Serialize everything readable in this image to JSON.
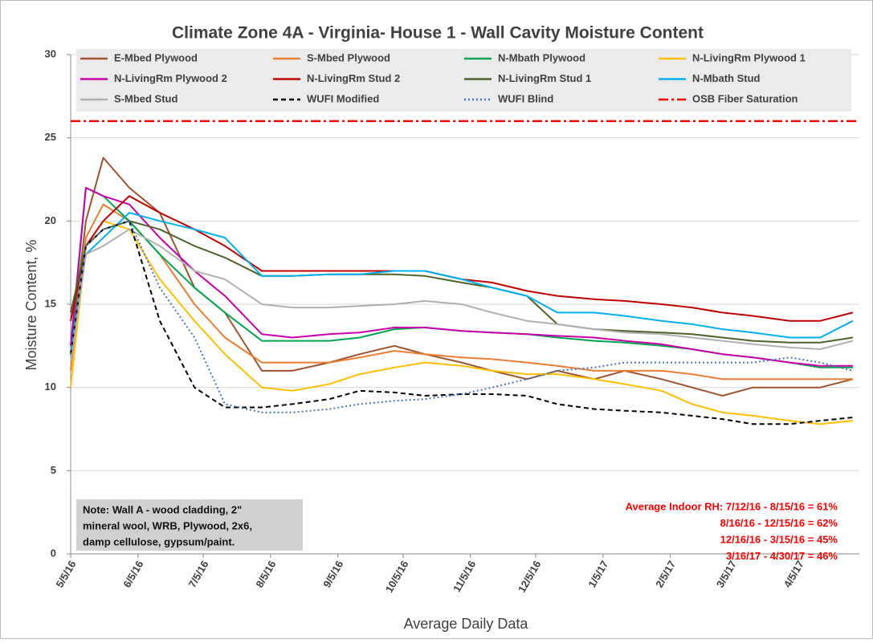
{
  "chart_data": {
    "type": "line",
    "title": "Climate Zone 4A - Virginia- House 1 - Wall Cavity Moisture Content",
    "y_label": "Moisture Content, %",
    "x_label": "Average Daily Data",
    "x": [
      "2016-05-05",
      "2016-05-12",
      "2016-05-20",
      "2016-06-01",
      "2016-06-15",
      "2016-07-01",
      "2016-07-15",
      "2016-08-01",
      "2016-08-15",
      "2016-09-01",
      "2016-09-15",
      "2016-10-01",
      "2016-10-15",
      "2016-11-01",
      "2016-11-15",
      "2016-12-01",
      "2016-12-15",
      "2017-01-01",
      "2017-01-15",
      "2017-02-01",
      "2017-02-15",
      "2017-03-01",
      "2017-03-15",
      "2017-04-01",
      "2017-04-15",
      "2017-04-30"
    ],
    "xlim": [
      "2016-05-05",
      "2017-05-03"
    ],
    "xticks": [
      {
        "value": "2016-05-05",
        "label": "5/5/16"
      },
      {
        "value": "2016-06-05",
        "label": "6/5/16"
      },
      {
        "value": "2016-07-05",
        "label": "7/5/16"
      },
      {
        "value": "2016-08-05",
        "label": "8/5/16"
      },
      {
        "value": "2016-09-05",
        "label": "9/5/16"
      },
      {
        "value": "2016-10-05",
        "label": "10/5/16"
      },
      {
        "value": "2016-11-05",
        "label": "11/5/16"
      },
      {
        "value": "2016-12-05",
        "label": "12/5/16"
      },
      {
        "value": "2017-01-05",
        "label": "1/5/17"
      },
      {
        "value": "2017-02-05",
        "label": "2/5/17"
      },
      {
        "value": "2017-03-05",
        "label": "3/5/17"
      },
      {
        "value": "2017-04-05",
        "label": "4/5/17"
      }
    ],
    "ylim": [
      0,
      30
    ],
    "yticks": [
      0,
      5,
      10,
      15,
      20,
      25,
      30
    ],
    "grid": true,
    "series": [
      {
        "name": "E-Mbed Plywood",
        "color": "#a0522d",
        "style": "solid",
        "values": [
          12,
          20,
          23.8,
          22,
          20.5,
          16,
          14.5,
          11,
          11,
          11.5,
          12,
          12.5,
          12,
          11.5,
          11,
          10.5,
          11,
          10.5,
          11,
          10.5,
          10,
          9.5,
          10,
          10,
          10,
          10.5
        ]
      },
      {
        "name": "S-Mbed Plywood",
        "color": "#ed7d31",
        "style": "solid",
        "values": [
          11,
          19,
          21,
          20,
          18,
          15,
          13,
          11.5,
          11.5,
          11.5,
          11.8,
          12.2,
          12,
          11.8,
          11.7,
          11.5,
          11.3,
          11,
          11,
          11,
          10.8,
          10.5,
          10.5,
          10.5,
          10.5,
          10.5
        ]
      },
      {
        "name": "N-Mbath Plywood",
        "color": "#00a550",
        "style": "solid",
        "values": [
          12,
          22,
          21.5,
          20,
          18,
          16,
          14.5,
          12.8,
          12.8,
          12.8,
          13,
          13.5,
          13.6,
          13.4,
          13.3,
          13.2,
          13,
          12.8,
          12.7,
          12.5,
          12.3,
          12,
          11.8,
          11.5,
          11.2,
          11.2
        ]
      },
      {
        "name": "N-LivingRm Plywood 1",
        "color": "#ffc000",
        "style": "solid",
        "values": [
          10,
          18.5,
          20,
          19.5,
          16.5,
          14,
          12,
          10,
          9.8,
          10.2,
          10.8,
          11.2,
          11.5,
          11.3,
          11,
          10.8,
          10.8,
          10.5,
          10.2,
          9.8,
          9,
          8.5,
          8.3,
          8,
          7.8,
          8
        ]
      },
      {
        "name": "N-LivingRm Plywood 2",
        "color": "#cc00aa",
        "style": "solid",
        "values": [
          12.5,
          22,
          21.5,
          21,
          19,
          17,
          15.5,
          13.2,
          13,
          13.2,
          13.3,
          13.6,
          13.6,
          13.4,
          13.3,
          13.2,
          13.1,
          13,
          12.8,
          12.6,
          12.3,
          12,
          11.8,
          11.5,
          11.3,
          11.3
        ]
      },
      {
        "name": "N-LivingRm Stud 2",
        "color": "#c00000",
        "style": "solid",
        "values": [
          14,
          18.5,
          20,
          21.5,
          20.5,
          19.5,
          18.5,
          17,
          17,
          17,
          17,
          17,
          17,
          16.5,
          16.3,
          15.8,
          15.5,
          15.3,
          15.2,
          15,
          14.8,
          14.5,
          14.3,
          14,
          14,
          14.5
        ]
      },
      {
        "name": "N-LivingRm Stud 1",
        "color": "#4f6228",
        "style": "solid",
        "values": [
          14.5,
          18.5,
          19.5,
          20,
          19.5,
          18.5,
          17.8,
          16.7,
          16.7,
          16.8,
          16.8,
          16.8,
          16.7,
          16.3,
          16,
          15.5,
          13.8,
          13.5,
          13.4,
          13.3,
          13.2,
          13,
          12.8,
          12.7,
          12.7,
          13
        ]
      },
      {
        "name": "N-Mbath Stud",
        "color": "#00b0f0",
        "style": "solid",
        "values": [
          12,
          18,
          19,
          20.5,
          20,
          19.5,
          19,
          16.7,
          16.7,
          16.8,
          16.8,
          17,
          17,
          16.5,
          16,
          15.5,
          14.5,
          14.5,
          14.3,
          14,
          13.8,
          13.5,
          13.3,
          13,
          13,
          14
        ]
      },
      {
        "name": "S-Mbed Stud",
        "color": "#b0b0b0",
        "style": "solid",
        "values": [
          11.5,
          18,
          18.5,
          19.5,
          18.5,
          17,
          16.5,
          15,
          14.8,
          14.8,
          14.9,
          15,
          15.2,
          15,
          14.5,
          14,
          13.8,
          13.5,
          13.3,
          13.2,
          13,
          12.8,
          12.6,
          12.4,
          12.3,
          12.8
        ]
      },
      {
        "name": "WUFI Modified",
        "color": "#000000",
        "style": "dashed",
        "values": [
          12,
          18.5,
          19.5,
          20,
          14,
          10,
          8.8,
          8.8,
          9,
          9.3,
          9.8,
          9.7,
          9.5,
          9.6,
          9.6,
          9.5,
          9,
          8.7,
          8.6,
          8.5,
          8.3,
          8.1,
          7.8,
          7.8,
          8,
          8.2
        ]
      },
      {
        "name": "WUFI Blind",
        "color": "#4472c4",
        "style": "dotted",
        "values": [
          12,
          18.5,
          19.5,
          20,
          16,
          13,
          9,
          8.5,
          8.5,
          8.7,
          9,
          9.2,
          9.3,
          9.6,
          10,
          10.5,
          11,
          11.2,
          11.5,
          11.5,
          11.5,
          11.5,
          11.5,
          11.8,
          11.5,
          11
        ]
      }
    ],
    "reference_lines": [
      {
        "name": "OSB Fiber Saturation",
        "color": "#ff0000",
        "style": "dashdot",
        "value": 26
      }
    ],
    "note": [
      "Note: Wall A - wood cladding, 2\"",
      "mineral wool, WRB, Plywood, 2x6,",
      "damp cellulose, gypsum/paint."
    ],
    "rh_annotation": [
      "Average Indoor RH: 7/12/16 - 8/15/16 = 61%",
      "8/16/16 - 12/15/16 = 62%",
      "12/16/16 - 3/15/16 = 45%",
      "3/16/17 - 4/30/17 = 46%"
    ]
  }
}
